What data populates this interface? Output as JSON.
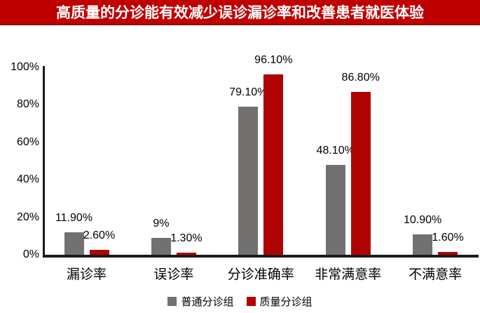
{
  "header": {
    "title": "高质量的分诊能有效减少误诊漏诊率和改善患者就医体验"
  },
  "colors": {
    "banner_bg": "#c00000",
    "banner_text": "#ffffff",
    "series_gray": "#737070",
    "series_red": "#b00303",
    "axis": "#1a1a1a",
    "label_text": "#000000"
  },
  "chart_data": {
    "type": "bar",
    "title": "高质量的分诊能有效减少误诊漏诊率和改善患者就医体验",
    "categories": [
      "漏诊率",
      "误诊率",
      "分诊准确率",
      "非常满意率",
      "不满意率"
    ],
    "series": [
      {
        "name": "普通分诊组",
        "color": "#737070",
        "values": [
          11.9,
          9,
          79.1,
          48.1,
          10.9
        ],
        "data_labels": [
          "11.90%",
          "9%",
          "79.10%",
          "48.10%",
          "10.90%"
        ]
      },
      {
        "name": "质量分诊组",
        "color": "#b00303",
        "values": [
          2.6,
          1.3,
          96.1,
          86.8,
          1.6
        ],
        "data_labels": [
          "2.60%",
          "1.30%",
          "96.10%",
          "86.80%",
          "1.60%"
        ]
      }
    ],
    "y_axis": {
      "min": 0,
      "max": 100,
      "tick_step": 20,
      "ticks": [
        "0%",
        "20%",
        "40%",
        "60%",
        "80%",
        "100%"
      ]
    },
    "xlabel": "",
    "ylabel": "",
    "grid": false,
    "legend_position": "bottom"
  }
}
